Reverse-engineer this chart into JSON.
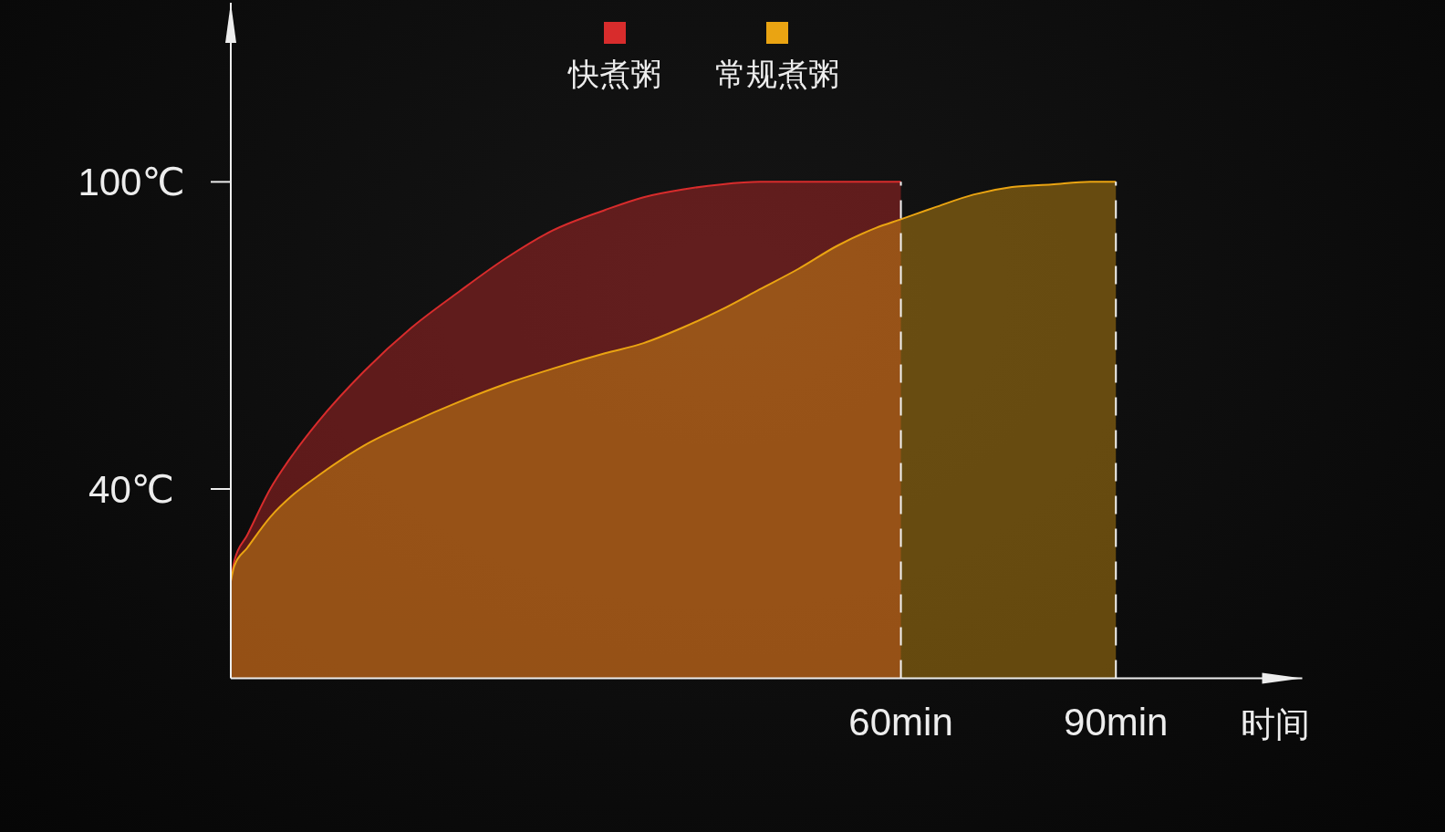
{
  "chart_data": {
    "type": "area",
    "xlabel": "时间",
    "xlim": [
      -33.5,
      116
    ],
    "xticks": [
      {
        "value": 60,
        "label": "60min"
      },
      {
        "value": 90,
        "label": "90min"
      }
    ],
    "ylim": [
      3,
      135
    ],
    "yticks": [
      {
        "value": 40,
        "label": "40℃"
      },
      {
        "value": 100,
        "label": "100℃"
      }
    ],
    "series": [
      {
        "name": "快煮粥",
        "color": "#d82c2c",
        "x": [
          -33.5,
          -33,
          -31.2,
          -28,
          -24.7,
          -21.4,
          -14.9,
          -8.3,
          -1.7,
          4.8,
          11.4,
          18.7,
          24.1,
          29.5,
          34.9,
          40.3,
          50,
          60
        ],
        "values": [
          22,
          26,
          31,
          40,
          47,
          53,
          63,
          71.5,
          78.5,
          85,
          90.5,
          94.5,
          97,
          98.5,
          99.5,
          100,
          100,
          100
        ]
      },
      {
        "name": "常规煮粥",
        "color": "#eaa412",
        "x": [
          -33.5,
          -33,
          -31.2,
          -28,
          -24.7,
          -21.4,
          -14.9,
          -8.3,
          -1.7,
          4.8,
          11.4,
          18.7,
          24.1,
          29.5,
          34.9,
          40.3,
          45.7,
          51.1,
          56.5,
          60,
          64.7,
          70.1,
          75.5,
          81,
          86.4,
          90
        ],
        "values": [
          22,
          25,
          28.5,
          34.5,
          39,
          42.5,
          48.5,
          53,
          57,
          60.5,
          63.5,
          66.5,
          68.5,
          71.5,
          75,
          79,
          83,
          87.5,
          91,
          92.7,
          95,
          97.5,
          99,
          99.5,
          100,
          100
        ]
      }
    ],
    "ref_lines": [
      {
        "axis": "x",
        "value": 60,
        "color": "#f2f2f2",
        "line_style": "dashed"
      },
      {
        "axis": "x",
        "value": 90,
        "color": "#f2f2f2",
        "line_style": "dashed"
      }
    ],
    "legend": "top"
  }
}
